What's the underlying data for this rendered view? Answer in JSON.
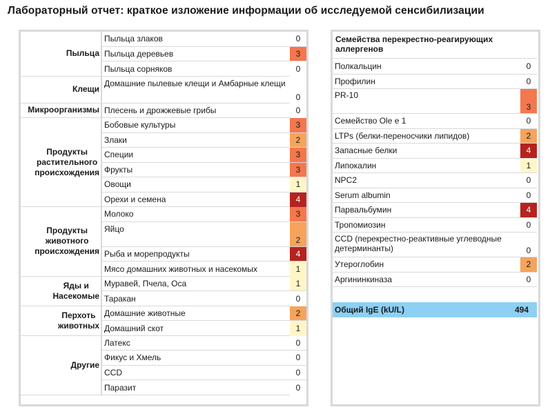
{
  "title": "Лабораторный отчет: краткое изложение информации об исследуемой сенсибилизации",
  "colors": {
    "0": "#ffffff",
    "1": "#fff6c8",
    "2": "#f6a35c",
    "3": "#f4774e",
    "4": "#b5231f",
    "total_bg": "#8dd0f3"
  },
  "sources": [
    {
      "label": [
        "Пыльца"
      ],
      "rows": [
        {
          "name": "Пыльца злаков",
          "value": "0"
        },
        {
          "name": "Пыльца деревьев",
          "value": "3"
        },
        {
          "name": "Пыльца сорняков",
          "value": "0"
        }
      ]
    },
    {
      "label": [
        "Клещи"
      ],
      "rows": [
        {
          "name": "Домашние пылевые клещи и Амбарные клещи",
          "value": "0"
        }
      ]
    },
    {
      "label": [
        "Микроорганизмы"
      ],
      "rows": [
        {
          "name": "Плесень и дрожжевые грибы",
          "value": "0"
        }
      ]
    },
    {
      "label": [
        "Продукты",
        "растительного",
        "происхождения"
      ],
      "rows": [
        {
          "name": "Бобовые культуры",
          "value": "3"
        },
        {
          "name": "Злаки",
          "value": "2"
        },
        {
          "name": "Специи",
          "value": "3"
        },
        {
          "name": "Фрукты",
          "value": "3"
        },
        {
          "name": "Овощи",
          "value": "1"
        },
        {
          "name": "Орехи и семена",
          "value": "4"
        }
      ]
    },
    {
      "label": [
        "Продукты",
        "животного",
        "происхождения"
      ],
      "rows": [
        {
          "name": "Молоко",
          "value": "3"
        },
        {
          "name": "Яйцо",
          "value": "2"
        },
        {
          "name": "Рыба и морепродукты",
          "value": "4"
        },
        {
          "name": "Мясо домашних животных и насекомых",
          "value": "1"
        }
      ]
    },
    {
      "label": [
        "Яды и",
        "Насекомые"
      ],
      "rows": [
        {
          "name": "Муравей, Пчела, Оса",
          "value": "1"
        },
        {
          "name": "Таракан",
          "value": "0"
        }
      ]
    },
    {
      "label": [
        "Перхоть",
        "животных"
      ],
      "rows": [
        {
          "name": "Домашние животные",
          "value": "2"
        },
        {
          "name": "Домашний скот",
          "value": "1"
        }
      ]
    },
    {
      "label": [
        "Другие"
      ],
      "rows": [
        {
          "name": "Латекс",
          "value": "0"
        },
        {
          "name": "Фикус и Хмель",
          "value": "0"
        },
        {
          "name": "CCD",
          "value": "0"
        },
        {
          "name": "Паразит",
          "value": "0"
        }
      ]
    }
  ],
  "families": {
    "header": "Семейства перекрестно-реагирующих аллергенов",
    "rows": [
      {
        "name": "Полкальцин",
        "value": "0"
      },
      {
        "name": "Профилин",
        "value": "0"
      },
      {
        "name": "PR-10",
        "value": "3"
      },
      {
        "name": "Семейство Ole e 1",
        "value": "0"
      },
      {
        "name": "LTPs (белки-переносчики липидов)",
        "value": "2"
      },
      {
        "name": "Запасные белки",
        "value": "4"
      },
      {
        "name": "Липокалин",
        "value": "1"
      },
      {
        "name": "NPC2",
        "value": "0"
      },
      {
        "name": "Serum albumin",
        "value": "0"
      },
      {
        "name": "Парвальбумин",
        "value": "4"
      },
      {
        "name": "Тропомиозин",
        "value": "0"
      },
      {
        "name": "CCD (перекрестно-реактивные углеводные детерминанты)",
        "value": "0"
      },
      {
        "name": "Утероглобин",
        "value": "2"
      },
      {
        "name": "Аргининкиназа",
        "value": "0"
      }
    ]
  },
  "total": {
    "label": "Общий IgE (kU/L)",
    "value": "494"
  }
}
